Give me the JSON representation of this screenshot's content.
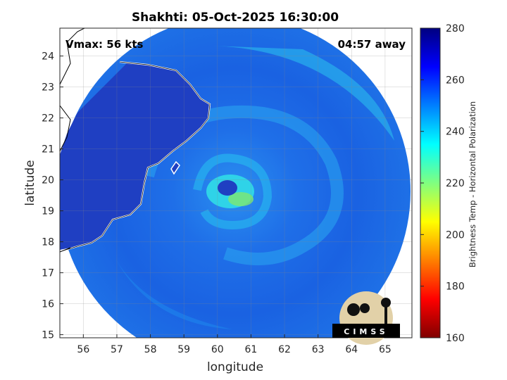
{
  "chart_data": {
    "type": "heatmap",
    "title": "Shakhti: 05-Oct-2025 16:30:00",
    "xlabel": "longitude",
    "ylabel": "latitude",
    "xlim": [
      55.3,
      65.8
    ],
    "ylim": [
      14.9,
      24.9
    ],
    "xticks": [
      "56",
      "57",
      "58",
      "59",
      "60",
      "61",
      "62",
      "63",
      "64",
      "65"
    ],
    "yticks": [
      "15",
      "16",
      "17",
      "18",
      "19",
      "20",
      "21",
      "22",
      "23",
      "24"
    ],
    "grid": true,
    "annotations": {
      "vmax": "Vmax: 56 kts",
      "time_away": "04:57 away"
    },
    "storm_center": {
      "lon": 60.3,
      "lat": 19.8
    },
    "colorbar": {
      "label": "Brightness Temp - Horizontal Polarization",
      "range": [
        160,
        280
      ],
      "ticks": [
        "160",
        "180",
        "200",
        "220",
        "240",
        "260",
        "280"
      ],
      "colormap": "jet"
    },
    "logo_text": "CIMSS"
  },
  "colors": {
    "land": "#1f3fc2",
    "ocean_warm": "#1a73ea",
    "ocean_cool": "#2aa8f0",
    "coastline": "#ffffff",
    "map_border": "#000000"
  }
}
